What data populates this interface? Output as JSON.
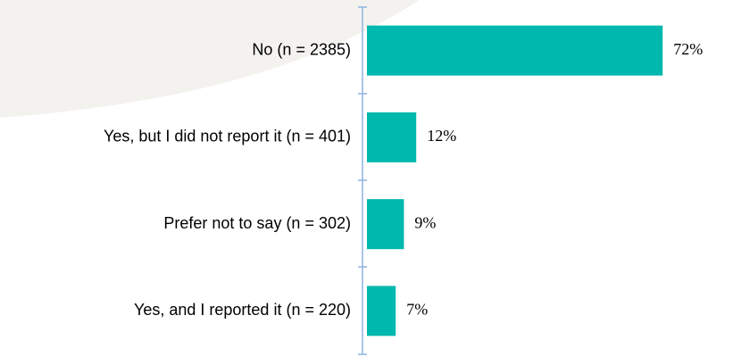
{
  "chart_data": {
    "type": "bar",
    "orientation": "horizontal",
    "categories": [
      "No (n = 2385)",
      "Yes, but I did not report it (n = 401)",
      "Prefer not to say (n = 302)",
      "Yes, and I reported it (n = 220)"
    ],
    "values": [
      72,
      12,
      9,
      7
    ],
    "value_labels": [
      "72%",
      "12%",
      "9%",
      "7%"
    ],
    "color": "#00b8ad"
  }
}
